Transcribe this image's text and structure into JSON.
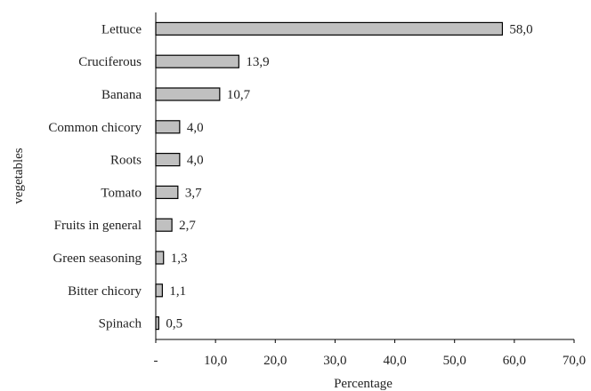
{
  "chart_data": {
    "type": "bar",
    "orientation": "horizontal",
    "categories": [
      "Lettuce",
      "Cruciferous",
      "Banana",
      "Common chicory",
      "Roots",
      "Tomato",
      "Fruits in general",
      "Green seasoning",
      "Bitter chicory",
      "Spinach"
    ],
    "values": [
      58.0,
      13.9,
      10.7,
      4.0,
      4.0,
      3.7,
      2.7,
      1.3,
      1.1,
      0.5
    ],
    "value_labels": [
      "58,0",
      "13,9",
      "10,7",
      "4,0",
      "4,0",
      "3,7",
      "2,7",
      "1,3",
      "1,1",
      "0,5"
    ],
    "x_ticks": [
      0,
      10,
      20,
      30,
      40,
      50,
      60,
      70
    ],
    "x_tick_labels": [
      "-",
      "10,0",
      "20,0",
      "30,0",
      "40,0",
      "50,0",
      "60,0",
      "70,0"
    ],
    "xlim": [
      0,
      70
    ],
    "xlabel": "Percentage",
    "ylabel": "vegetables",
    "grid": false,
    "bar_fill": "#c0c0c0",
    "bar_stroke": "#000000"
  }
}
